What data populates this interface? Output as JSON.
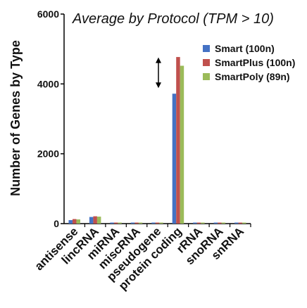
{
  "chart_data": {
    "type": "bar",
    "title": "Average by Protocol (TPM > 10)",
    "ylabel": "Number of Genes by Type",
    "xlabel": "",
    "ylim": [
      0,
      6000
    ],
    "yticks": [
      0,
      2000,
      4000,
      6000
    ],
    "grid": false,
    "legend_position": "top-right",
    "categories": [
      "antisense",
      "lincRNA",
      "miRNA",
      "miscRNA",
      "pseudogene",
      "protein coding",
      "rRNA",
      "snoRNA",
      "snRNA"
    ],
    "series": [
      {
        "name": "Smart (100n)",
        "color": "#4472C4",
        "values": [
          100,
          190,
          10,
          12,
          15,
          3720,
          10,
          12,
          12
        ]
      },
      {
        "name": "SmartPlus (100n)",
        "color": "#C0504D",
        "values": [
          130,
          210,
          12,
          15,
          18,
          4770,
          12,
          15,
          15
        ]
      },
      {
        "name": "SmartPoly (89n)",
        "color": "#9BBB59",
        "values": [
          120,
          200,
          10,
          13,
          16,
          4520,
          10,
          13,
          13
        ]
      }
    ],
    "annotations": [
      {
        "type": "double-arrow",
        "category": "protein coding",
        "from": 3880,
        "to": 4760
      }
    ]
  }
}
